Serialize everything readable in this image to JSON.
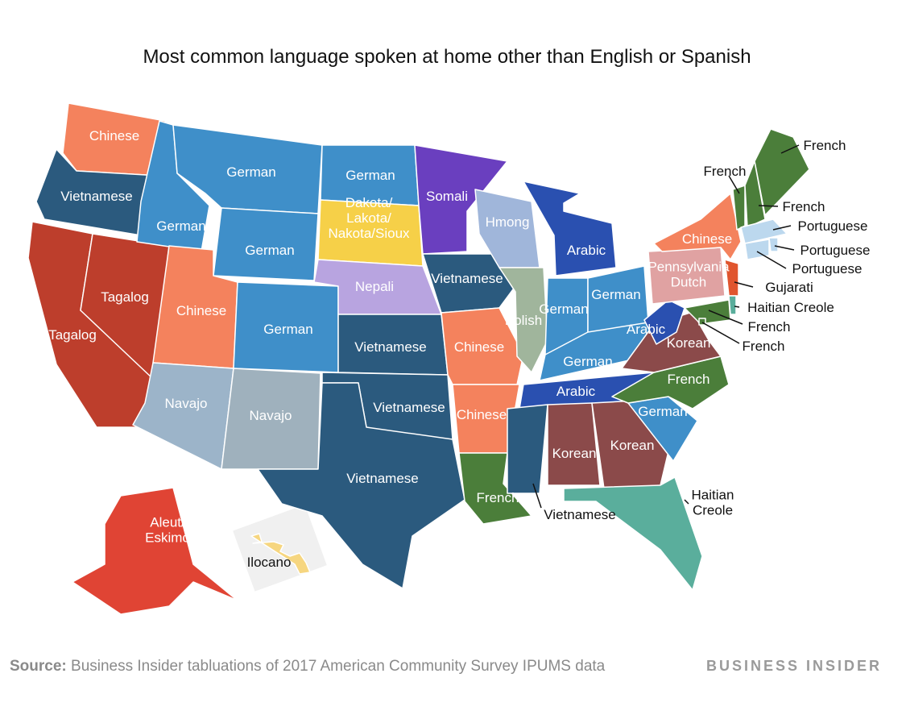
{
  "title": "Most common language spoken at home other than English or Spanish",
  "regions": [
    {
      "lines": [
        "Chinese"
      ],
      "color": "#f4825d"
    },
    {
      "lines": [
        "Vietnamese"
      ],
      "color": "#2b5a7e"
    },
    {
      "lines": [
        "Tagalog"
      ],
      "color": "#bd3e2c"
    },
    {
      "lines": [
        "Tagalog"
      ],
      "color": "#bd3e2c"
    },
    {
      "lines": [
        "German"
      ],
      "color": "#3f8fc9"
    },
    {
      "lines": [
        "German"
      ],
      "color": "#3f8fc9"
    },
    {
      "lines": [
        "German"
      ],
      "color": "#3f8fc9"
    },
    {
      "lines": [
        "Chinese"
      ],
      "color": "#f4825d"
    },
    {
      "lines": [
        "German"
      ],
      "color": "#3f8fc9"
    },
    {
      "lines": [
        "Navajo"
      ],
      "color": "#9cb4c9"
    },
    {
      "lines": [
        "Navajo"
      ],
      "color": "#9fb1bd"
    },
    {
      "lines": [
        "German"
      ],
      "color": "#3f8fc9"
    },
    {
      "lines": [
        "Dakota/",
        "Lakota/",
        "Nakota/Sioux"
      ],
      "color": "#f6d048"
    },
    {
      "lines": [
        "Nepali"
      ],
      "color": "#b8a4e0"
    },
    {
      "lines": [
        "Vietnamese"
      ],
      "color": "#2b5a7e"
    },
    {
      "lines": [
        "Vietnamese"
      ],
      "color": "#2b5a7e"
    },
    {
      "lines": [
        "Vietnamese"
      ],
      "color": "#2b5a7e"
    },
    {
      "lines": [
        "Somali"
      ],
      "color": "#6a3fbf"
    },
    {
      "lines": [
        "Vietnamese"
      ],
      "color": "#2b5a7e"
    },
    {
      "lines": [
        "Chinese"
      ],
      "color": "#f4825d"
    },
    {
      "lines": [
        "Chinese"
      ],
      "color": "#f4825d"
    },
    {
      "lines": [
        "French"
      ],
      "color": "#4b7e3a"
    },
    {
      "lines": [
        "Hmong"
      ],
      "color": "#a0b6da"
    },
    {
      "lines": [
        "Polish"
      ],
      "color": "#a0b59c"
    },
    {
      "lines": [
        "Arabic"
      ],
      "color": "#2a50b0"
    },
    {
      "lines": [
        "German"
      ],
      "color": "#3f8fc9"
    },
    {
      "lines": [
        "German"
      ],
      "color": "#3f8fc9"
    },
    {
      "lines": [
        "German"
      ],
      "color": "#3f8fc9"
    },
    {
      "lines": [
        "Arabic"
      ],
      "color": "#2a50b0"
    },
    {
      "lines": [
        "Vietnamese"
      ],
      "color": "#2b5a7e"
    },
    {
      "lines": [
        "Korean"
      ],
      "color": "#8b4a4a"
    },
    {
      "lines": [
        "Korean"
      ],
      "color": "#8b4a4a"
    },
    {
      "lines": [
        "Haitian",
        "Creole"
      ],
      "color": "#5aae9c"
    },
    {
      "lines": [
        "German"
      ],
      "color": "#3f8fc9"
    },
    {
      "lines": [
        "French"
      ],
      "color": "#4b7e3a"
    },
    {
      "lines": [
        "Korean"
      ],
      "color": "#8b4a4a"
    },
    {
      "lines": [
        "Arabic"
      ],
      "color": "#2a50b0"
    },
    {
      "lines": [
        "Pennsylvania",
        "Dutch"
      ],
      "color": "#e0a2a2"
    },
    {
      "lines": [
        "Chinese"
      ],
      "color": "#f4825d"
    },
    {
      "lines": [
        "Gujarati"
      ],
      "color": "#e0552e"
    },
    {
      "lines": [
        "French"
      ],
      "color": "#4b7e3a"
    },
    {
      "lines": [
        "Haitian Creole"
      ],
      "color": "#5aae9c"
    },
    {
      "lines": [
        "French"
      ],
      "color": "#4b7e3a"
    },
    {
      "lines": [
        "French"
      ],
      "color": "#4b7e3a"
    },
    {
      "lines": [
        "French"
      ],
      "color": "#4b7e3a"
    },
    {
      "lines": [
        "French"
      ],
      "color": "#4b7e3a"
    },
    {
      "lines": [
        "Portuguese"
      ],
      "color": "#bcd8ee"
    },
    {
      "lines": [
        "Portuguese"
      ],
      "color": "#bcd8ee"
    },
    {
      "lines": [
        "Portuguese"
      ],
      "color": "#bcd8ee"
    },
    {
      "lines": [
        "Aleut/",
        "Eskimo"
      ],
      "color": "#e04434"
    },
    {
      "lines": [
        "Ilocano"
      ],
      "color": "#f6d680"
    }
  ],
  "source": {
    "label": "Source:",
    "text": "Business Insider tabluations of 2017 American Community Survey IPUMS data"
  },
  "brand": "BUSINESS INSIDER"
}
